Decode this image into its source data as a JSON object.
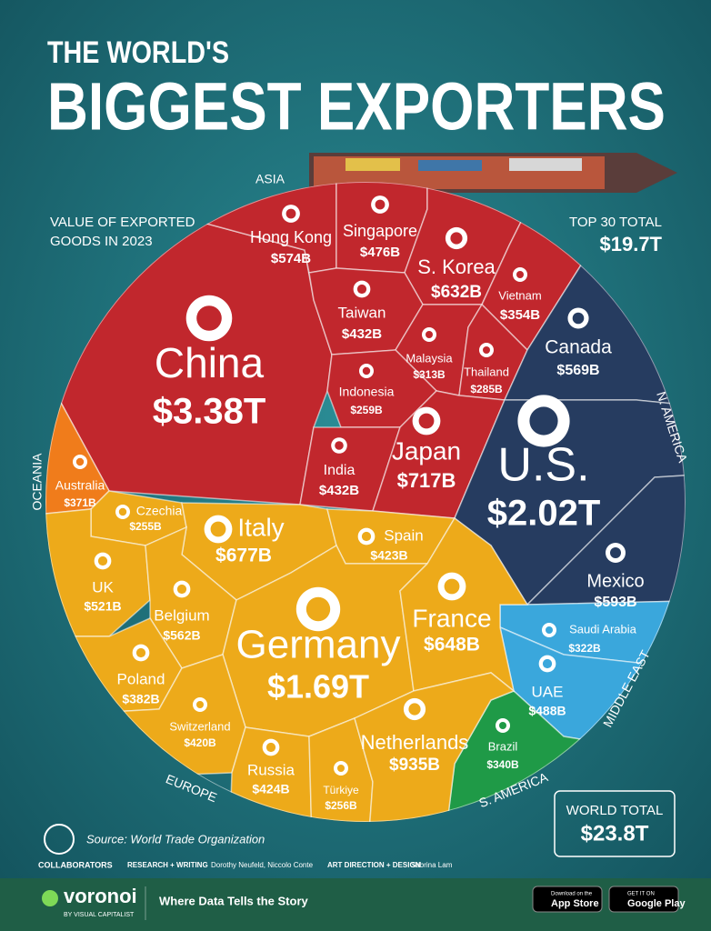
{
  "header": {
    "title_small": "THE WORLD'S",
    "title_big": "BIGGEST EXPORTERS",
    "subtitle_1": "VALUE OF EXPORTED",
    "subtitle_2": "GOODS IN 2023",
    "top30_label": "TOP 30 TOTAL",
    "top30_value": "$19.7T",
    "world_label": "WORLD TOTAL",
    "world_value": "$23.8T"
  },
  "chart_data": {
    "type": "voronoi",
    "series": [
      {
        "name": "ASIA",
        "color": "#c1272d",
        "categories": [
          "China",
          "Hong Kong",
          "Singapore",
          "S. Korea",
          "Vietnam",
          "Taiwan",
          "Malaysia",
          "Thailand",
          "Indonesia",
          "India",
          "Japan"
        ],
        "values": [
          3380,
          574,
          476,
          632,
          354,
          432,
          313,
          285,
          259,
          432,
          717
        ],
        "value_labels": [
          "$3.38T",
          "$574B",
          "$476B",
          "$632B",
          "$354B",
          "$432B",
          "$313B",
          "$285B",
          "$259B",
          "$432B",
          "$717B"
        ]
      },
      {
        "name": "OCEANIA",
        "color": "#f07c1b",
        "categories": [
          "Australia"
        ],
        "values": [
          371
        ],
        "value_labels": [
          "$371B"
        ]
      },
      {
        "name": "N. AMERICA",
        "color": "#263c60",
        "categories": [
          "Canada",
          "U.S.",
          "Mexico"
        ],
        "values": [
          569,
          2020,
          593
        ],
        "value_labels": [
          "$569B",
          "$2.02T",
          "$593B"
        ]
      },
      {
        "name": "MIDDLE EAST",
        "color": "#3aa7dc",
        "categories": [
          "Saudi Arabia",
          "UAE"
        ],
        "values": [
          322,
          488
        ],
        "value_labels": [
          "$322B",
          "$488B"
        ]
      },
      {
        "name": "S. AMERICA",
        "color": "#1f9a47",
        "categories": [
          "Brazil"
        ],
        "values": [
          340
        ],
        "value_labels": [
          "$340B"
        ]
      },
      {
        "name": "EUROPE",
        "color": "#edaa1a",
        "categories": [
          "Czechia",
          "Italy",
          "Spain",
          "UK",
          "Belgium",
          "Germany",
          "France",
          "Poland",
          "Switzerland",
          "Russia",
          "Türkiye",
          "Netherlands"
        ],
        "values": [
          255,
          677,
          423,
          521,
          562,
          1690,
          648,
          382,
          420,
          424,
          256,
          935
        ],
        "value_labels": [
          "$255B",
          "$677B",
          "$423B",
          "$521B",
          "$562B",
          "$1.69T",
          "$648B",
          "$382B",
          "$420B",
          "$424B",
          "$256B",
          "$935B"
        ]
      }
    ]
  },
  "footer": {
    "source": "Source: World Trade Organization",
    "collaborators": "COLLABORATORS",
    "research_label": "RESEARCH + WRITING",
    "research_names": "Dorothy Neufeld, Niccolo Conte",
    "art_label": "ART DIRECTION + DESIGN",
    "art_names": "Sabrina Lam",
    "brand": "voronoi",
    "brand_sub": "BY VISUAL CAPITALIST",
    "tagline": "Where Data Tells the Story",
    "appstore_small": "Download on the",
    "appstore": "App Store",
    "gplay_small": "GET IT ON",
    "gplay": "Google Play"
  }
}
